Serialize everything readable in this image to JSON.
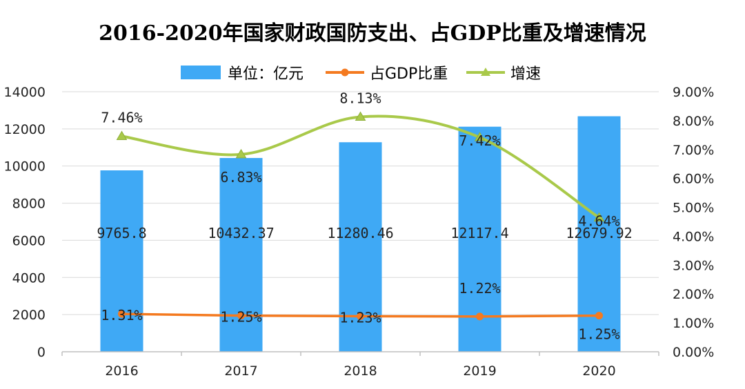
{
  "chart_data": {
    "type": "bar",
    "title": "2016-2020年国家财政国防支出、占GDP比重及增速情况",
    "categories": [
      "2016",
      "2017",
      "2018",
      "2019",
      "2020"
    ],
    "ylim_left": [
      0,
      14000
    ],
    "yticks_left": [
      "0",
      "2000",
      "4000",
      "6000",
      "8000",
      "10000",
      "12000",
      "14000"
    ],
    "ylim_right": [
      0,
      9
    ],
    "yticks_right": [
      "0.00%",
      "1.00%",
      "2.00%",
      "3.00%",
      "4.00%",
      "5.00%",
      "6.00%",
      "7.00%",
      "8.00%",
      "9.00%"
    ],
    "grid": true,
    "legend_position": "top",
    "series": [
      {
        "name": "单位：亿元",
        "type": "bar",
        "axis": "left",
        "color": "#3fa9f5",
        "values": [
          9765.8,
          10432.37,
          11280.46,
          12117.4,
          12679.92
        ],
        "labels": [
          "9765.8",
          "10432.37",
          "11280.46",
          "12117.4",
          "12679.92"
        ]
      },
      {
        "name": "占GDP比重",
        "type": "line",
        "axis": "right",
        "color": "#f47a20",
        "values": [
          1.31,
          1.25,
          1.23,
          1.22,
          1.25
        ],
        "labels": [
          "1.31%",
          "1.25%",
          "1.23%",
          "1.22%",
          "1.25%"
        ]
      },
      {
        "name": "增速",
        "type": "line",
        "axis": "right",
        "color": "#a9c94a",
        "values": [
          7.46,
          6.83,
          8.13,
          7.42,
          4.64
        ],
        "labels": [
          "7.46%",
          "6.83%",
          "8.13%",
          "7.42%",
          "4.64%"
        ]
      }
    ]
  }
}
